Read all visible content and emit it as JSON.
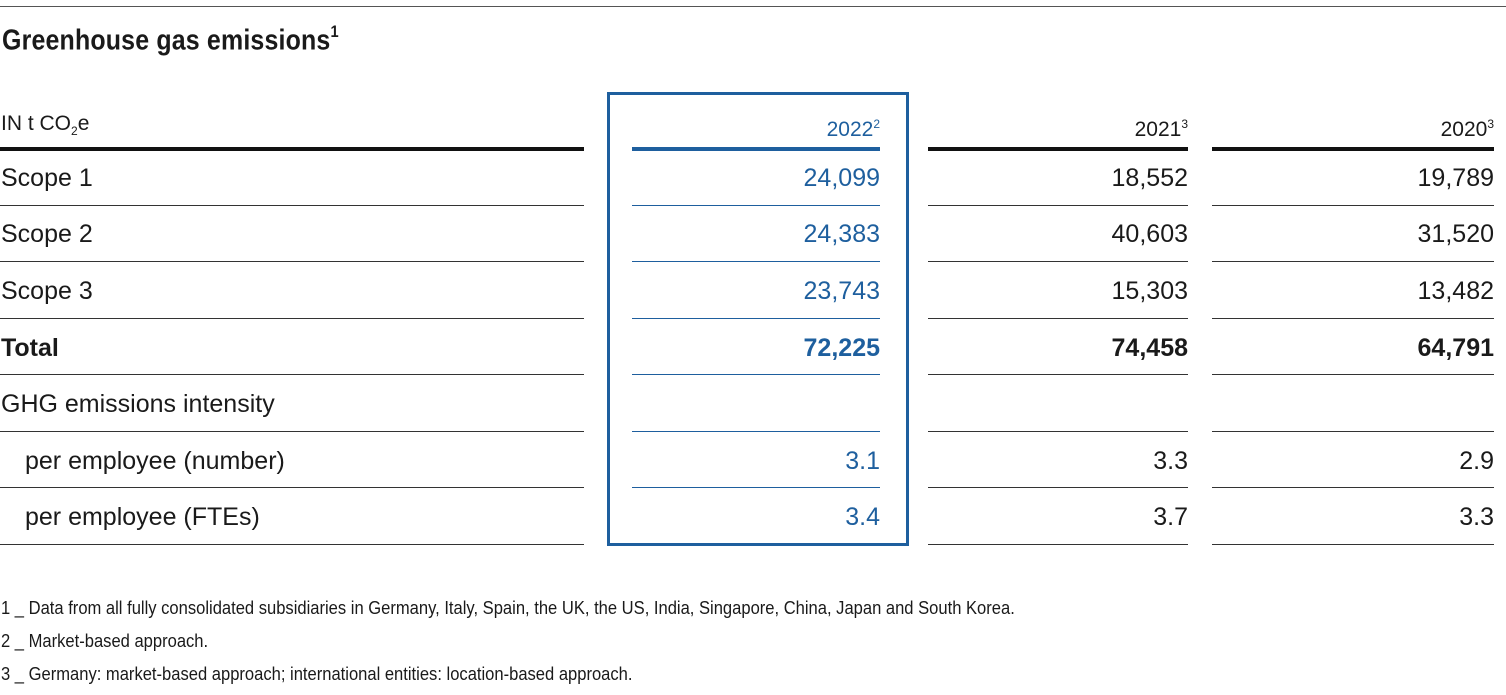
{
  "title": "Greenhouse gas emissions",
  "title_sup": "1",
  "header": {
    "unit_prefix": "IN t CO",
    "unit_sub": "2",
    "unit_suffix": "e",
    "col1": "2022",
    "col1_sup": "2",
    "col2": "2021",
    "col2_sup": "3",
    "col3": "2020",
    "col3_sup": "3"
  },
  "rows": [
    {
      "label": "Scope 1",
      "v2022": "24,099",
      "v2021": "18,552",
      "v2020": "19,789"
    },
    {
      "label": "Scope 2",
      "v2022": "24,383",
      "v2021": "40,603",
      "v2020": "31,520"
    },
    {
      "label": "Scope 3",
      "v2022": "23,743",
      "v2021": "15,303",
      "v2020": "13,482"
    },
    {
      "label": "Total",
      "v2022": "72,225",
      "v2021": "74,458",
      "v2020": "64,791"
    },
    {
      "label": "GHG emissions intensity",
      "v2022": "",
      "v2021": "",
      "v2020": ""
    },
    {
      "label": "per employee (number)",
      "v2022": "3.1",
      "v2021": "3.3",
      "v2020": "2.9"
    },
    {
      "label": "per employee (FTEs)",
      "v2022": "3.4",
      "v2021": "3.7",
      "v2020": "3.3"
    }
  ],
  "footnotes": [
    "1 _ Data from all fully consolidated subsidiaries in Germany, Italy, Spain, the UK, the US, India, Singapore, China, Japan and South Korea.",
    "2 _ Market-based approach.",
    "3 _ Germany: market-based approach; international entities: location-based approach."
  ],
  "colors": {
    "accent": "#1e5f9e",
    "text": "#1a1a1a"
  }
}
